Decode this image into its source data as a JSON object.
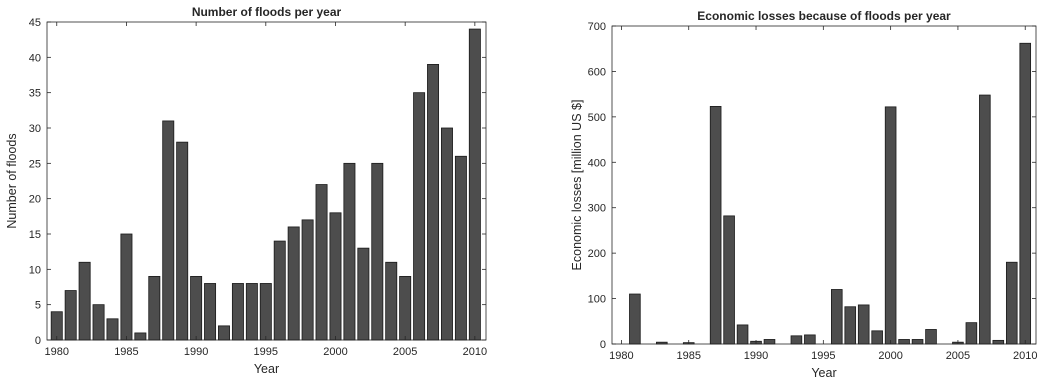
{
  "chart_data": [
    {
      "type": "bar",
      "title": "Number of floods per year",
      "xlabel": "Year",
      "ylabel": "Number of floods",
      "x": [
        1980,
        1981,
        1982,
        1983,
        1984,
        1985,
        1986,
        1987,
        1988,
        1989,
        1990,
        1991,
        1992,
        1993,
        1994,
        1995,
        1996,
        1997,
        1998,
        1999,
        2000,
        2001,
        2002,
        2003,
        2004,
        2005,
        2006,
        2007,
        2008,
        2009,
        2010
      ],
      "values": [
        4,
        7,
        11,
        5,
        3,
        15,
        1,
        9,
        31,
        28,
        9,
        8,
        2,
        8,
        8,
        8,
        14,
        16,
        17,
        22,
        18,
        25,
        13,
        25,
        11,
        9,
        35,
        39,
        30,
        26,
        44
      ],
      "xlim": [
        1979.3,
        2010.8
      ],
      "ylim": [
        0,
        45
      ],
      "xticks": [
        1980,
        1985,
        1990,
        1995,
        2000,
        2005,
        2010
      ],
      "yticks": [
        0,
        5,
        10,
        15,
        20,
        25,
        30,
        35,
        40,
        45
      ],
      "bar_color": "#4d4d4d",
      "grid": false
    },
    {
      "type": "bar",
      "title": "Economic losses because of floods per year",
      "xlabel": "Year",
      "ylabel": "Economic losses [million US $]",
      "x": [
        1980,
        1981,
        1982,
        1983,
        1984,
        1985,
        1986,
        1987,
        1988,
        1989,
        1990,
        1991,
        1992,
        1993,
        1994,
        1995,
        1996,
        1997,
        1998,
        1999,
        2000,
        2001,
        2002,
        2003,
        2004,
        2005,
        2006,
        2007,
        2008,
        2009,
        2010
      ],
      "values": [
        0,
        110,
        0,
        4,
        0,
        3,
        0,
        523,
        282,
        42,
        6,
        10,
        0,
        18,
        20,
        0,
        120,
        82,
        86,
        29,
        522,
        10,
        10,
        32,
        0,
        4,
        47,
        548,
        8,
        180,
        662
      ],
      "xlim": [
        1979.3,
        2010.8
      ],
      "ylim": [
        0,
        700
      ],
      "xticks": [
        1980,
        1985,
        1990,
        1995,
        2000,
        2005,
        2010
      ],
      "yticks": [
        0,
        100,
        200,
        300,
        400,
        500,
        600,
        700
      ],
      "bar_color": "#4d4d4d",
      "grid": false
    }
  ]
}
